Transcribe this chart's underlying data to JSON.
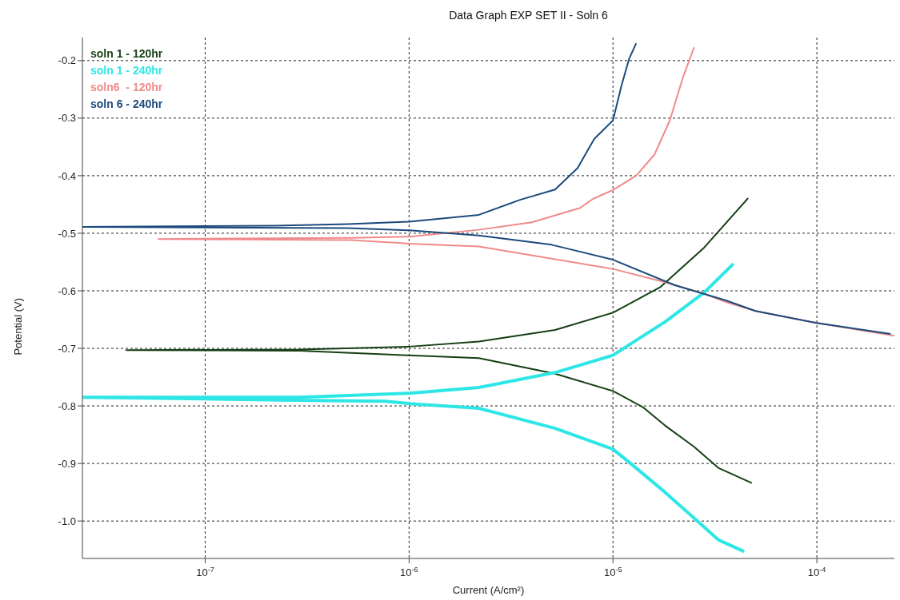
{
  "chart_data": {
    "type": "line",
    "title": "Data Graph EXP SET II - Soln 6",
    "xlabel": "Current (A/cm²)",
    "ylabel": "Potential (V)",
    "log": "x",
    "grid": true,
    "legend": "top left",
    "line_style": "solid",
    "marker": "none",
    "xlim": [
      2.5e-08,
      0.00024
    ],
    "xticks": [
      {
        "value": 1e-07,
        "label": "10$^{-7}$"
      },
      {
        "value": 1e-06,
        "label": "10$^{-6}$"
      },
      {
        "value": 1e-05,
        "label": "10$^{-5}$"
      },
      {
        "value": 0.0001,
        "label": "10$^{-4}$"
      }
    ],
    "ylim": [
      -1.065,
      -0.16
    ],
    "yticks": [
      -0.2,
      -0.3,
      -0.4,
      -0.5,
      -0.6,
      -0.7,
      -0.8,
      -0.9,
      {
        "value": -1,
        "label": "-1.0"
      }
    ],
    "series": [
      {
        "name": "soln 1 - 120hr",
        "color": "#153f15",
        "x": [
          4.8e-05,
          3.3e-05,
          2.5e-05,
          1.8e-05,
          1.4e-05,
          1e-05,
          5.2e-06,
          2.2e-06,
          1e-06,
          2.9e-07,
          4.1e-08,
          2.9e-07,
          1e-06,
          2.2e-06,
          5.2e-06,
          1e-05,
          1.7e-05,
          2.8e-05,
          4.6e-05
        ],
        "values": [
          -0.934,
          -0.908,
          -0.871,
          -0.834,
          -0.802,
          -0.774,
          -0.744,
          -0.717,
          -0.712,
          -0.704,
          -0.703,
          -0.702,
          -0.697,
          -0.688,
          -0.668,
          -0.638,
          -0.594,
          -0.525,
          -0.439
        ]
      },
      {
        "name": "soln 1 - 240hr",
        "color": "#2ee6e6",
        "x": [
          4.4e-05,
          3.3e-05,
          2.5e-05,
          1.8e-05,
          1.3e-05,
          1e-05,
          5.2e-06,
          2.2e-06,
          1e-06,
          7.7e-07,
          2.7e-07,
          2.5e-08,
          2.9e-07,
          1e-06,
          2.2e-06,
          5.2e-06,
          1e-05,
          1.8e-05,
          2.8e-05,
          3.9e-05
        ],
        "values": [
          -1.053,
          -1.033,
          -0.995,
          -0.95,
          -0.908,
          -0.875,
          -0.839,
          -0.804,
          -0.796,
          -0.792,
          -0.79,
          -0.785,
          -0.785,
          -0.778,
          -0.768,
          -0.742,
          -0.712,
          -0.654,
          -0.603,
          -0.553
        ]
      },
      {
        "name": "soln6  - 120hr",
        "color": "#f08a8a",
        "x": [
          0.00024,
          0.0001,
          5e-05,
          3.6e-05,
          2.8e-05,
          1.8e-05,
          1e-05,
          2.2e-06,
          1e-06,
          5.2e-07,
          5.9e-08,
          5.2e-07,
          1e-06,
          2.2e-06,
          4e-06,
          6.9e-06,
          8e-06,
          1e-05,
          1.3e-05,
          1.6e-05,
          1.9e-05,
          2.2e-05,
          2.5e-05
        ],
        "values": [
          -0.678,
          -0.656,
          -0.635,
          -0.62,
          -0.605,
          -0.585,
          -0.562,
          -0.523,
          -0.518,
          -0.512,
          -0.51,
          -0.508,
          -0.506,
          -0.494,
          -0.481,
          -0.456,
          -0.44,
          -0.425,
          -0.4,
          -0.363,
          -0.304,
          -0.23,
          -0.177
        ]
      },
      {
        "name": "soln 6 - 240hr",
        "color": "#1b4a7c",
        "x": [
          0.00023,
          0.0001,
          5e-05,
          3.6e-05,
          2e-05,
          1e-05,
          5e-06,
          2.2e-06,
          1e-06,
          5e-07,
          2.5e-08,
          2.2e-07,
          5e-07,
          1e-06,
          2.2e-06,
          3.5e-06,
          5.2e-06,
          6.7e-06,
          8.1e-06,
          1e-05,
          1.1e-05,
          1.2e-05,
          1.3e-05
        ],
        "values": [
          -0.675,
          -0.656,
          -0.635,
          -0.617,
          -0.59,
          -0.546,
          -0.52,
          -0.504,
          -0.495,
          -0.491,
          -0.489,
          -0.487,
          -0.484,
          -0.48,
          -0.468,
          -0.442,
          -0.424,
          -0.387,
          -0.336,
          -0.304,
          -0.244,
          -0.197,
          -0.17
        ]
      }
    ]
  }
}
